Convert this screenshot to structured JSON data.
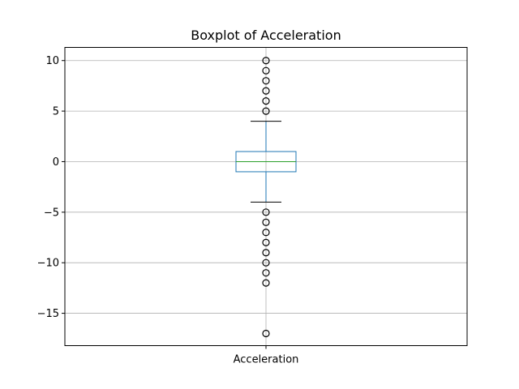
{
  "chart_data": {
    "type": "box",
    "title": "Boxplot of Acceleration",
    "xlabel": "",
    "ylabel": "",
    "categories": [
      "Acceleration"
    ],
    "ylim": [
      -18.2,
      11.3
    ],
    "yticks": [
      10,
      5,
      0,
      -5,
      -10,
      -15
    ],
    "ytick_labels": [
      "10",
      "5",
      "0",
      "−5",
      "−10",
      "−15"
    ],
    "grid": true,
    "box": {
      "whisker_low": -4,
      "q1": -1,
      "median": 0,
      "q3": 1,
      "whisker_high": 4
    },
    "outliers": [
      10,
      9,
      8,
      7,
      6,
      5,
      -5,
      -6,
      -7,
      -8,
      -9,
      -10,
      -11,
      -12,
      -17
    ],
    "colors": {
      "box": "#1f77b4",
      "median": "#2ca02c",
      "whisker_cap": "#000000",
      "grid": "#b0b0b0",
      "outlier": "#000000"
    }
  }
}
